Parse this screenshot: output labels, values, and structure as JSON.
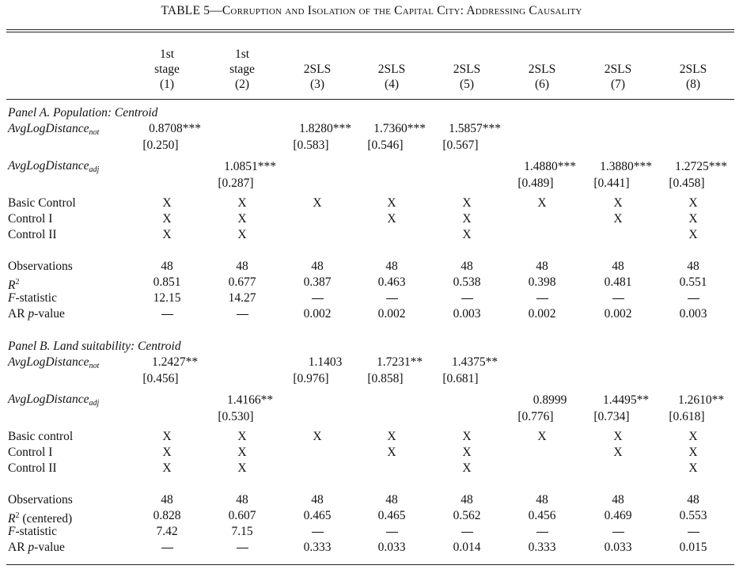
{
  "title": {
    "prefix": "TABLE 5",
    "rest": "—Corruption and Isolation of the Capital City: Addressing Causality"
  },
  "columns": [
    {
      "lines": [
        "1st",
        "stage",
        "(1)"
      ]
    },
    {
      "lines": [
        "1st",
        "stage",
        "(2)"
      ]
    },
    {
      "lines": [
        "2SLS",
        "(3)"
      ]
    },
    {
      "lines": [
        "2SLS",
        "(4)"
      ]
    },
    {
      "lines": [
        "2SLS",
        "(5)"
      ]
    },
    {
      "lines": [
        "2SLS",
        "(6)"
      ]
    },
    {
      "lines": [
        "2SLS",
        "(7)"
      ]
    },
    {
      "lines": [
        "2SLS",
        "(8)"
      ]
    }
  ],
  "dash_symbol": "—",
  "control_mark": "X",
  "panels": [
    {
      "heading": "Panel A. Population: Centroid",
      "var_not": {
        "label_base": "AvgLogDistance",
        "label_sub": "not",
        "coefs": [
          "0.8708***",
          "",
          "1.8280***",
          "1.7360***",
          "1.5857***",
          "",
          "",
          ""
        ],
        "ses": [
          "[0.250]",
          "",
          "[0.583]",
          "[0.546]",
          "[0.567]",
          "",
          "",
          ""
        ]
      },
      "var_adj": {
        "label_base": "AvgLogDistance",
        "label_sub": "adj",
        "coefs": [
          "",
          "1.0851***",
          "",
          "",
          "",
          "1.4880***",
          "1.3880***",
          "1.2725***"
        ],
        "ses": [
          "",
          "[0.287]",
          "",
          "",
          "",
          "[0.489]",
          "[0.441]",
          "[0.458]"
        ]
      },
      "controls": [
        {
          "label": "Basic Control",
          "marks": [
            "X",
            "X",
            "X",
            "X",
            "X",
            "X",
            "X",
            "X"
          ]
        },
        {
          "label": "Control I",
          "marks": [
            "X",
            "X",
            "",
            "X",
            "X",
            "",
            "X",
            "X"
          ]
        },
        {
          "label": "Control II",
          "marks": [
            "X",
            "X",
            "",
            "",
            "X",
            "",
            "",
            "X"
          ]
        }
      ],
      "stats": [
        {
          "label": "Observations",
          "label_style": "plain",
          "values": [
            "48",
            "48",
            "48",
            "48",
            "48",
            "48",
            "48",
            "48"
          ]
        },
        {
          "label": "R",
          "label_style": "r2",
          "label_suffix": "",
          "values": [
            "0.851",
            "0.677",
            "0.387",
            "0.463",
            "0.538",
            "0.398",
            "0.481",
            "0.551"
          ]
        },
        {
          "label": "F",
          "label_style": "f",
          "label_suffix": "-statistic",
          "values": [
            "12.15",
            "14.27",
            "—",
            "—",
            "—",
            "—",
            "—",
            "—"
          ]
        },
        {
          "label": "AR ",
          "label_style": "ar",
          "label_suffix": "-value",
          "values": [
            "—",
            "—",
            "0.002",
            "0.002",
            "0.003",
            "0.002",
            "0.002",
            "0.003"
          ]
        }
      ]
    },
    {
      "heading": "Panel B. Land suitability: Centroid",
      "var_not": {
        "label_base": "AvgLogDistance",
        "label_sub": "not",
        "coefs": [
          "1.2427**",
          "",
          "1.1403",
          "1.7231**",
          "1.4375**",
          "",
          "",
          ""
        ],
        "ses": [
          "[0.456]",
          "",
          "[0.976]",
          "[0.858]",
          "[0.681]",
          "",
          "",
          ""
        ]
      },
      "var_adj": {
        "label_base": "AvgLogDistance",
        "label_sub": "adj",
        "coefs": [
          "",
          "1.4166**",
          "",
          "",
          "",
          "0.8999",
          "1.4495**",
          "1.2610**"
        ],
        "ses": [
          "",
          "[0.530]",
          "",
          "",
          "",
          "[0.776]",
          "[0.734]",
          "[0.618]"
        ]
      },
      "controls": [
        {
          "label": "Basic control",
          "marks": [
            "X",
            "X",
            "X",
            "X",
            "X",
            "X",
            "X",
            "X"
          ]
        },
        {
          "label": "Control I",
          "marks": [
            "X",
            "X",
            "",
            "X",
            "X",
            "",
            "X",
            "X"
          ]
        },
        {
          "label": "Control II",
          "marks": [
            "X",
            "X",
            "",
            "",
            "X",
            "",
            "",
            "X"
          ]
        }
      ],
      "stats": [
        {
          "label": "Observations",
          "label_style": "plain",
          "values": [
            "48",
            "48",
            "48",
            "48",
            "48",
            "48",
            "48",
            "48"
          ]
        },
        {
          "label": "R",
          "label_style": "r2",
          "label_suffix": " (centered)",
          "values": [
            "0.828",
            "0.607",
            "0.465",
            "0.465",
            "0.562",
            "0.456",
            "0.469",
            "0.553"
          ]
        },
        {
          "label": "F",
          "label_style": "f",
          "label_suffix": "-statistic",
          "values": [
            "7.42",
            "7.15",
            "—",
            "—",
            "—",
            "—",
            "—",
            "—"
          ]
        },
        {
          "label": "AR ",
          "label_style": "ar",
          "label_suffix": "-value",
          "values": [
            "—",
            "—",
            "0.333",
            "0.033",
            "0.014",
            "0.333",
            "0.033",
            "0.015"
          ]
        }
      ]
    }
  ]
}
